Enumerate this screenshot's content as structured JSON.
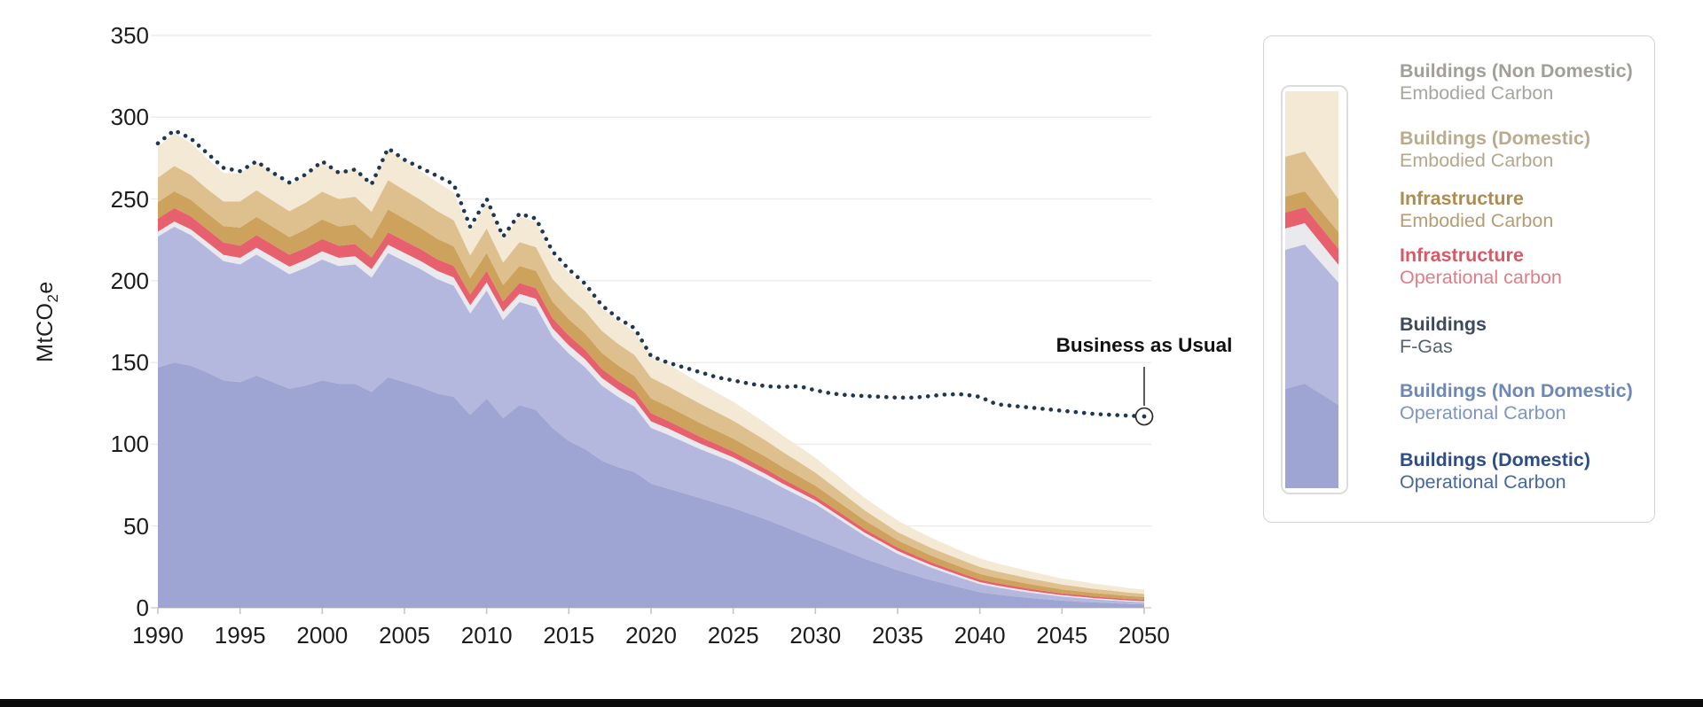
{
  "chart_data": {
    "type": "area",
    "stacked": true,
    "title": "",
    "ylabel": "MtCO2e",
    "y_axis_title": {
      "prefix": "MtCO",
      "sub": "2",
      "suffix": "e"
    },
    "xlim": [
      1990,
      2050
    ],
    "ylim": [
      0,
      350
    ],
    "grid": "horizontal",
    "legend_position": "right",
    "y_ticks": [
      0,
      50,
      100,
      150,
      200,
      250,
      300,
      350
    ],
    "x_ticks": [
      1990,
      1995,
      2000,
      2005,
      2010,
      2015,
      2020,
      2025,
      2030,
      2035,
      2040,
      2045,
      2050
    ],
    "years": [
      1990,
      1991,
      1992,
      1993,
      1994,
      1995,
      1996,
      1997,
      1998,
      1999,
      2000,
      2001,
      2002,
      2003,
      2004,
      2005,
      2006,
      2007,
      2008,
      2009,
      2010,
      2011,
      2012,
      2013,
      2014,
      2015,
      2016,
      2017,
      2018,
      2019,
      2020,
      2021,
      2022,
      2023,
      2024,
      2025,
      2026,
      2027,
      2028,
      2029,
      2030,
      2031,
      2032,
      2033,
      2034,
      2035,
      2036,
      2037,
      2038,
      2039,
      2040,
      2041,
      2042,
      2043,
      2044,
      2045,
      2046,
      2047,
      2048,
      2049,
      2050
    ],
    "series": [
      {
        "id": "dom_op",
        "name": "Buildings (Domestic)",
        "sublabel": "Operational Carbon",
        "color": "#9fa5d2",
        "values": [
          147,
          150,
          148,
          144,
          139,
          138,
          142,
          138,
          134,
          136,
          139,
          137,
          137,
          132,
          141,
          138,
          135,
          131,
          129,
          118,
          128,
          116,
          124,
          121,
          110,
          102,
          97,
          90,
          86,
          83,
          76,
          73,
          70,
          67,
          64,
          61,
          57.5,
          54,
          50,
          46,
          42,
          38,
          34,
          30,
          26.5,
          23,
          20,
          17,
          14.5,
          12,
          9.5,
          8.2,
          7.1,
          6.1,
          5.2,
          4.4,
          3.8,
          3.3,
          2.8,
          2.4,
          2.1
        ]
      },
      {
        "id": "nondom_op",
        "name": "Buildings (Non Domestic)",
        "sublabel": "Operational Carbon",
        "color": "#b4b8de",
        "values": [
          80,
          83,
          80,
          76,
          73,
          72,
          74,
          72,
          70,
          72,
          74,
          72,
          73,
          70,
          76,
          74,
          72,
          70,
          68,
          62,
          66,
          60,
          63,
          63,
          56,
          53.5,
          50,
          46,
          43,
          40,
          34,
          33,
          31.5,
          30,
          29,
          28,
          26.5,
          25,
          23.5,
          22.5,
          21.5,
          19,
          16.5,
          14,
          12,
          10,
          8.8,
          7.7,
          6.7,
          5.8,
          5,
          4.4,
          3.8,
          3.3,
          2.9,
          2.5,
          2.2,
          1.9,
          1.7,
          1.5,
          1.3
        ]
      },
      {
        "id": "fgas",
        "name": "Buildings",
        "sublabel": "F-Gas",
        "color": "#e9e9ee",
        "values": [
          3,
          3.2,
          3.4,
          3.6,
          3.8,
          4,
          4.2,
          4.4,
          4.6,
          4.8,
          5,
          5,
          5,
          5,
          5,
          5,
          5,
          5,
          5,
          5,
          5,
          5,
          5,
          5,
          5,
          5,
          4.8,
          4.6,
          4.4,
          4.2,
          4,
          3.8,
          3.6,
          3.4,
          3.2,
          3,
          2.8,
          2.7,
          2.5,
          2.4,
          2.2,
          2.1,
          2,
          1.9,
          1.9,
          1.8,
          1.7,
          1.5,
          1.4,
          1.3,
          1.2,
          1.1,
          1.1,
          1,
          0.9,
          0.8,
          0.8,
          0.7,
          0.7,
          0.6,
          0.6
        ]
      },
      {
        "id": "infra_op",
        "name": "Infrastructure",
        "sublabel": "Operational carbon",
        "color": "#e7606e",
        "values": [
          8,
          8.2,
          8,
          7.8,
          7.6,
          7.5,
          7.7,
          7.5,
          7.3,
          7.4,
          7.5,
          7.4,
          7.4,
          7.2,
          7.6,
          7.4,
          7.2,
          7.1,
          7,
          6.6,
          7,
          6.4,
          6.6,
          6.5,
          6.2,
          6,
          5.8,
          5.5,
          5.3,
          5.1,
          5,
          4.7,
          4.4,
          4.1,
          3.8,
          3.5,
          3.3,
          3.1,
          2.9,
          2.7,
          2.5,
          2.4,
          2.3,
          2.2,
          2.1,
          2,
          1.9,
          1.8,
          1.7,
          1.6,
          1.5,
          1.4,
          1.4,
          1.3,
          1.2,
          1.1,
          1.1,
          1,
          1,
          0.9,
          0.9
        ]
      },
      {
        "id": "infra_emb",
        "name": "Infrastructure",
        "sublabel": "Embodied Carbon",
        "color": "#cda25c",
        "values": [
          10,
          10.3,
          10.1,
          9.9,
          10,
          11,
          11.2,
          11,
          10.8,
          11.2,
          12,
          11.8,
          12,
          11.5,
          14,
          13.5,
          13,
          12.5,
          12,
          10,
          11,
          10,
          10.5,
          10.5,
          10,
          10,
          10,
          9.8,
          9.5,
          9.3,
          9,
          8.8,
          8.6,
          8.4,
          8.2,
          8,
          7.7,
          7.4,
          7.1,
          6.8,
          6.5,
          6.1,
          5.7,
          5.3,
          4.9,
          4.5,
          4.3,
          4.1,
          3.9,
          3.7,
          3.5,
          3.3,
          3.1,
          2.9,
          2.7,
          2.4,
          2.3,
          2.1,
          2,
          1.8,
          1.7
        ]
      },
      {
        "id": "dom_emb",
        "name": "Buildings (Domestic)",
        "sublabel": "Embodied Carbon",
        "color": "#dec08f",
        "values": [
          15,
          15.5,
          15.2,
          14.8,
          15,
          16,
          16.2,
          16,
          15.8,
          16.4,
          17,
          16.8,
          17,
          16.5,
          18,
          17.5,
          17.2,
          17,
          16,
          14,
          15,
          13.8,
          14.5,
          14.5,
          14,
          14,
          13.8,
          13.5,
          13.2,
          13,
          12.7,
          12.4,
          12.1,
          11.8,
          11.4,
          11,
          10.5,
          10,
          9.4,
          8.7,
          8,
          7.4,
          6.8,
          6.2,
          5.6,
          5,
          4.8,
          4.7,
          4.5,
          4.4,
          4.3,
          4,
          3.7,
          3.4,
          3.2,
          3,
          2.7,
          2.5,
          2.3,
          2.1,
          1.9
        ]
      },
      {
        "id": "nondom_emb",
        "name": "Buildings (Non Domestic)",
        "sublabel": "Embodied Carbon",
        "color": "#f3e9d5",
        "values": [
          19,
          20,
          19.5,
          18.5,
          17.5,
          17,
          17.5,
          17,
          16.5,
          17,
          17.5,
          17,
          17.5,
          17,
          18.5,
          18,
          17.5,
          17.5,
          17,
          15,
          16,
          14.5,
          15.5,
          15.5,
          14.5,
          14.5,
          14.5,
          14,
          14,
          14,
          13.5,
          13.5,
          13,
          12.5,
          12,
          11.5,
          11,
          10.5,
          10,
          9.5,
          9,
          8.5,
          8,
          7.6,
          7.3,
          7,
          6.6,
          6.2,
          5.8,
          5.4,
          5.2,
          4.9,
          4.6,
          4.3,
          4,
          3.7,
          3.4,
          3.2,
          3,
          2.8,
          2.6
        ]
      }
    ],
    "bau_line": {
      "label": "Business as Usual",
      "style": "dotted",
      "color": "#1f3850",
      "values": [
        284,
        292,
        287,
        278,
        269,
        267,
        273,
        266,
        260,
        265,
        273,
        266,
        268,
        259,
        281,
        274,
        269,
        264,
        259,
        233,
        250,
        227,
        241,
        238,
        218,
        207,
        198,
        185,
        177,
        171,
        154,
        150,
        147,
        144,
        141,
        139,
        137,
        135.5,
        135,
        135.5,
        133,
        131,
        130,
        129.5,
        129,
        128.5,
        128.5,
        129.5,
        130.5,
        130.5,
        129,
        124.5,
        123.5,
        122.5,
        121.5,
        120.5,
        119.5,
        118.5,
        118,
        117.5,
        117
      ]
    }
  },
  "legend": {
    "entries": [
      {
        "series_id": "nondom_emb",
        "title": "Buildings (Non Domestic)",
        "sublabel": "Embodied Carbon",
        "title_color": "#a19f98",
        "sub_color": "#a7a5a0"
      },
      {
        "series_id": "dom_emb",
        "title": "Buildings (Domestic)",
        "sublabel": "Embodied Carbon",
        "title_color": "#b9ab8d",
        "sub_color": "#b3a78c"
      },
      {
        "series_id": "infra_emb",
        "title": "Infrastructure",
        "sublabel": "Embodied Carbon",
        "title_color": "#ae8c4e",
        "sub_color": "#b59d73"
      },
      {
        "series_id": "infra_op",
        "title": "Infrastructure",
        "sublabel": "Operational carbon",
        "title_color": "#d95866",
        "sub_color": "#e07d88"
      },
      {
        "series_id": "fgas",
        "title": "Buildings",
        "sublabel": "F-Gas",
        "title_color": "#3e4a5c",
        "sub_color": "#566170"
      },
      {
        "series_id": "nondom_op",
        "title": "Buildings (Non Domestic)",
        "sublabel": "Operational Carbon",
        "title_color": "#6d87b7",
        "sub_color": "#7e95c0"
      },
      {
        "series_id": "dom_op",
        "title": "Buildings (Domestic)",
        "sublabel": "Operational Carbon",
        "title_color": "#2c4e88",
        "sub_color": "#47689c"
      }
    ]
  },
  "colors": {
    "grid": "#ececec",
    "axis": "#d0d0d0",
    "tick": "#c4c4c4",
    "connector": "#c9c9c9",
    "marker_stroke": "#2a2a2a",
    "bottom_bar": "#0b0b0b"
  }
}
